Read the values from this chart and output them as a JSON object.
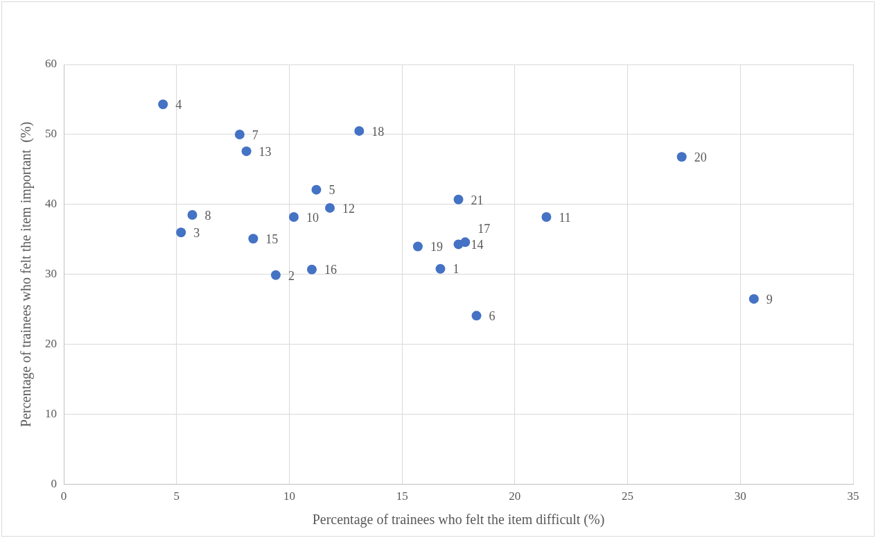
{
  "chart_data": {
    "type": "scatter",
    "xlabel": "Percentage of trainees who felt the item difficult (%)",
    "ylabel": "Percentage of trainees who felt the item important  (%)",
    "x": [
      16.7,
      9.4,
      5.2,
      4.4,
      11.2,
      18.3,
      7.8,
      5.7,
      30.6,
      10.2,
      21.4,
      11.8,
      8.1,
      17.5,
      8.4,
      11.0,
      17.8,
      13.1,
      15.7,
      27.4,
      17.5
    ],
    "series": [
      {
        "color": "#4472c4",
        "values": [
          30.8,
          29.9,
          36.0,
          54.3,
          42.1,
          24.1,
          50.0,
          38.5,
          26.5,
          38.2,
          38.2,
          39.5,
          47.6,
          34.3,
          35.1,
          30.7,
          34.6,
          50.5,
          34.0,
          46.8,
          40.7
        ]
      }
    ],
    "annotations": [
      {
        "text": "1",
        "x": 16.7,
        "y": 30.8
      },
      {
        "text": "2",
        "x": 9.4,
        "y": 29.9
      },
      {
        "text": "3",
        "x": 5.2,
        "y": 36.0
      },
      {
        "text": "4",
        "x": 4.4,
        "y": 54.3
      },
      {
        "text": "5",
        "x": 11.2,
        "y": 42.1
      },
      {
        "text": "6",
        "x": 18.3,
        "y": 24.1
      },
      {
        "text": "7",
        "x": 7.8,
        "y": 50.0
      },
      {
        "text": "8",
        "x": 5.7,
        "y": 38.5
      },
      {
        "text": "9",
        "x": 30.6,
        "y": 26.5
      },
      {
        "text": "10",
        "x": 10.2,
        "y": 38.2
      },
      {
        "text": "11",
        "x": 21.4,
        "y": 38.2
      },
      {
        "text": "12",
        "x": 11.8,
        "y": 39.5
      },
      {
        "text": "13",
        "x": 8.1,
        "y": 47.6
      },
      {
        "text": "14",
        "x": 17.5,
        "y": 34.3
      },
      {
        "text": "15",
        "x": 8.4,
        "y": 35.1
      },
      {
        "text": "16",
        "x": 11.0,
        "y": 30.7
      },
      {
        "text": "17",
        "x": 17.8,
        "y": 34.6
      },
      {
        "text": "18",
        "x": 13.1,
        "y": 50.5
      },
      {
        "text": "19",
        "x": 15.7,
        "y": 34.0
      },
      {
        "text": "20",
        "x": 27.4,
        "y": 46.8
      },
      {
        "text": "21",
        "x": 17.5,
        "y": 40.7
      }
    ],
    "xlim": [
      0,
      35
    ],
    "xticks": [
      0,
      5,
      10,
      15,
      20,
      25,
      30,
      35
    ],
    "ylim": [
      0,
      60
    ],
    "yticks": [
      0,
      10,
      20,
      30,
      40,
      50,
      60
    ],
    "grid": true,
    "legend": false,
    "marker": "circle"
  }
}
